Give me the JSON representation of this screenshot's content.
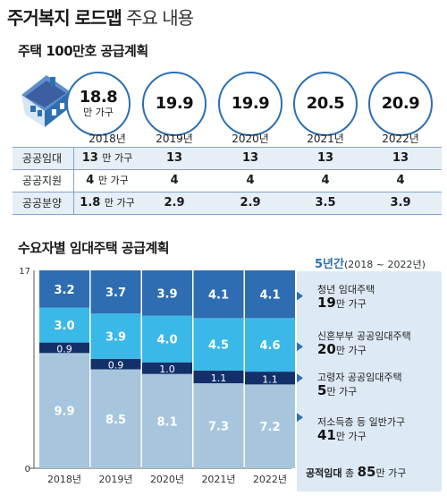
{
  "title": {
    "bold": "주거복지 로드맵",
    "light": "주요 내용"
  },
  "housing_plan": {
    "subtitle": "주택 100만호 공급계획",
    "years": [
      "2018년",
      "2019년",
      "2020년",
      "2021년",
      "2022년"
    ],
    "totals": [
      "18.8",
      "19.9",
      "19.9",
      "20.5",
      "20.9"
    ],
    "first_unit": "만 가구",
    "rows": [
      {
        "label": "공공임대",
        "values": [
          "13",
          "13",
          "13",
          "13",
          "13"
        ],
        "first_unit": "만 가구"
      },
      {
        "label": "공공지원",
        "values": [
          "4",
          "4",
          "4",
          "4",
          "4"
        ],
        "first_unit": "만 가구"
      },
      {
        "label": "공공분양",
        "values": [
          "1.8",
          "2.9",
          "2.9",
          "3.5",
          "3.9"
        ],
        "first_unit": "만 가구"
      }
    ],
    "icon": "house-icon"
  },
  "chart_data": {
    "type": "bar",
    "stacked": true,
    "title": "수요자별 임대주택 공급계획",
    "categories": [
      "2018년",
      "2019년",
      "2020년",
      "2021년",
      "2022년"
    ],
    "ylim": [
      0,
      17
    ],
    "yticks": [
      "0",
      "17"
    ],
    "series": [
      {
        "name": "저소득층 등 일반가구",
        "values": [
          9.9,
          8.5,
          8.1,
          7.3,
          7.2
        ],
        "color": "#a7c6de"
      },
      {
        "name": "고령자 공공임대주택",
        "values": [
          0.9,
          0.9,
          1.0,
          1.1,
          1.1
        ],
        "color": "#13306a"
      },
      {
        "name": "신혼부부 공공임대주택",
        "values": [
          3.0,
          3.9,
          4.0,
          4.5,
          4.6
        ],
        "color": "#3ab8e8"
      },
      {
        "name": "청년 임대주택",
        "values": [
          3.2,
          3.7,
          3.9,
          4.1,
          4.1
        ],
        "color": "#2e6db2"
      }
    ],
    "value_labels": [
      [
        "9.9",
        "8.5",
        "8.1",
        "7.3",
        "7.2"
      ],
      [
        "0.9",
        "0.9",
        "1.0",
        "1.1",
        "1.1"
      ],
      [
        "3.0",
        "3.9",
        "4.0",
        "4.5",
        "4.6"
      ],
      [
        "3.2",
        "3.7",
        "3.9",
        "4.1",
        "4.1"
      ]
    ]
  },
  "legend": {
    "period_label": "5년간",
    "period_range": "(2018 ~ 2022년)",
    "items": [
      {
        "name": "청년 임대주택",
        "value": "19",
        "unit": "만 가구"
      },
      {
        "name": "신혼부부 공공임대주택",
        "value": "20",
        "unit": "만 가구"
      },
      {
        "name": "고령자 공공임대주택",
        "value": "5",
        "unit": "만 가구"
      },
      {
        "name": "저소득층 등 일반가구",
        "value": "41",
        "unit": "만 가구"
      }
    ],
    "total_label": "공적임대",
    "total_prefix": "총",
    "total_value": "85",
    "total_unit": "만 가구"
  }
}
